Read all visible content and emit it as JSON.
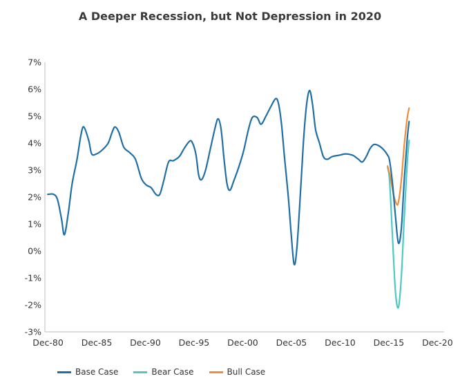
{
  "chart_data": {
    "type": "line",
    "title": "A Deeper Recession, but Not Depression in 2020",
    "xlabel": "",
    "ylabel": "",
    "xlim": [
      1980.6,
      2021.6
    ],
    "ylim": [
      -3,
      7
    ],
    "y_ticks": [
      {
        "value": 7,
        "label": "7%"
      },
      {
        "value": 6,
        "label": "6%"
      },
      {
        "value": 5,
        "label": "5%"
      },
      {
        "value": 4,
        "label": "4%"
      },
      {
        "value": 3,
        "label": "3%"
      },
      {
        "value": 2,
        "label": "2%"
      },
      {
        "value": 1,
        "label": "1%"
      },
      {
        "value": 0,
        "label": "0%"
      },
      {
        "value": -1,
        "label": "-1%"
      },
      {
        "value": -2,
        "label": "-2%"
      },
      {
        "value": -3,
        "label": "-3%"
      }
    ],
    "x_ticks": [
      {
        "value": 1980.92,
        "label": "Dec-80"
      },
      {
        "value": 1985.92,
        "label": "Dec-85"
      },
      {
        "value": 1990.92,
        "label": "Dec-90"
      },
      {
        "value": 1995.92,
        "label": "Dec-95"
      },
      {
        "value": 2000.92,
        "label": "Dec-00"
      },
      {
        "value": 2005.92,
        "label": "Dec-05"
      },
      {
        "value": 2010.92,
        "label": "Dec-10"
      },
      {
        "value": 2015.92,
        "label": "Dec-15"
      },
      {
        "value": 2020.92,
        "label": "Dec-20"
      }
    ],
    "grid": false,
    "legend_position": "bottom-left",
    "series": [
      {
        "name": "Base Case",
        "color": "#1f6fa5",
        "points": [
          [
            1980.9,
            2.1
          ],
          [
            1981.5,
            2.1
          ],
          [
            1981.9,
            1.9
          ],
          [
            1982.3,
            1.2
          ],
          [
            1982.6,
            0.6
          ],
          [
            1983.0,
            1.4
          ],
          [
            1983.4,
            2.5
          ],
          [
            1983.9,
            3.4
          ],
          [
            1984.3,
            4.3
          ],
          [
            1984.6,
            4.6
          ],
          [
            1985.1,
            4.1
          ],
          [
            1985.4,
            3.6
          ],
          [
            1985.9,
            3.6
          ],
          [
            1986.5,
            3.75
          ],
          [
            1987.1,
            4.0
          ],
          [
            1987.5,
            4.4
          ],
          [
            1987.8,
            4.6
          ],
          [
            1988.2,
            4.4
          ],
          [
            1988.7,
            3.85
          ],
          [
            1989.3,
            3.65
          ],
          [
            1989.9,
            3.4
          ],
          [
            1990.5,
            2.7
          ],
          [
            1991.0,
            2.45
          ],
          [
            1991.5,
            2.35
          ],
          [
            1992.0,
            2.1
          ],
          [
            1992.4,
            2.1
          ],
          [
            1992.8,
            2.6
          ],
          [
            1993.3,
            3.3
          ],
          [
            1993.8,
            3.35
          ],
          [
            1994.4,
            3.5
          ],
          [
            1994.9,
            3.8
          ],
          [
            1995.4,
            4.05
          ],
          [
            1995.7,
            4.05
          ],
          [
            1996.1,
            3.6
          ],
          [
            1996.4,
            2.8
          ],
          [
            1996.7,
            2.65
          ],
          [
            1997.1,
            3.0
          ],
          [
            1997.6,
            3.8
          ],
          [
            1998.1,
            4.6
          ],
          [
            1998.4,
            4.9
          ],
          [
            1998.7,
            4.5
          ],
          [
            1999.0,
            3.4
          ],
          [
            1999.3,
            2.5
          ],
          [
            1999.6,
            2.25
          ],
          [
            2000.0,
            2.6
          ],
          [
            2000.5,
            3.1
          ],
          [
            2001.0,
            3.7
          ],
          [
            2001.5,
            4.5
          ],
          [
            2001.9,
            4.95
          ],
          [
            2002.4,
            4.95
          ],
          [
            2002.8,
            4.7
          ],
          [
            2003.3,
            5.0
          ],
          [
            2003.8,
            5.35
          ],
          [
            2004.3,
            5.65
          ],
          [
            2004.6,
            5.45
          ],
          [
            2004.9,
            4.7
          ],
          [
            2005.2,
            3.5
          ],
          [
            2005.6,
            2.0
          ],
          [
            2005.9,
            0.6
          ],
          [
            2006.2,
            -0.5
          ],
          [
            2006.5,
            0.2
          ],
          [
            2006.9,
            2.5
          ],
          [
            2007.2,
            4.3
          ],
          [
            2007.5,
            5.5
          ],
          [
            2007.8,
            5.95
          ],
          [
            2008.1,
            5.4
          ],
          [
            2008.4,
            4.5
          ],
          [
            2008.8,
            4.0
          ],
          [
            2009.2,
            3.5
          ],
          [
            2009.6,
            3.4
          ],
          [
            2010.1,
            3.5
          ],
          [
            2010.8,
            3.55
          ],
          [
            2011.5,
            3.6
          ],
          [
            2012.2,
            3.55
          ],
          [
            2012.8,
            3.4
          ],
          [
            2013.2,
            3.3
          ],
          [
            2013.6,
            3.5
          ],
          [
            2014.0,
            3.8
          ],
          [
            2014.4,
            3.95
          ],
          [
            2014.9,
            3.9
          ],
          [
            2015.4,
            3.75
          ],
          [
            2015.8,
            3.55
          ],
          [
            2016.0,
            3.35
          ],
          [
            2016.3,
            2.5
          ],
          [
            2016.6,
            1.3
          ],
          [
            2016.9,
            0.3
          ],
          [
            2017.2,
            0.8
          ],
          [
            2017.5,
            2.6
          ],
          [
            2017.8,
            4.1
          ],
          [
            2018.0,
            4.8
          ]
        ]
      },
      {
        "name": "Bear Case",
        "color": "#4dc9c4",
        "points": [
          [
            2015.8,
            3.1
          ],
          [
            2016.0,
            2.6
          ],
          [
            2016.3,
            0.5
          ],
          [
            2016.6,
            -1.5
          ],
          [
            2016.9,
            -2.1
          ],
          [
            2017.2,
            -1.0
          ],
          [
            2017.5,
            1.2
          ],
          [
            2017.8,
            3.2
          ],
          [
            2018.0,
            4.1
          ]
        ]
      },
      {
        "name": "Bull Case",
        "color": "#f08c3a",
        "points": [
          [
            2015.8,
            3.15
          ],
          [
            2016.1,
            2.7
          ],
          [
            2016.4,
            2.1
          ],
          [
            2016.7,
            1.75
          ],
          [
            2016.9,
            1.8
          ],
          [
            2017.2,
            2.6
          ],
          [
            2017.5,
            3.9
          ],
          [
            2017.8,
            4.9
          ],
          [
            2018.0,
            5.3
          ]
        ]
      }
    ]
  }
}
